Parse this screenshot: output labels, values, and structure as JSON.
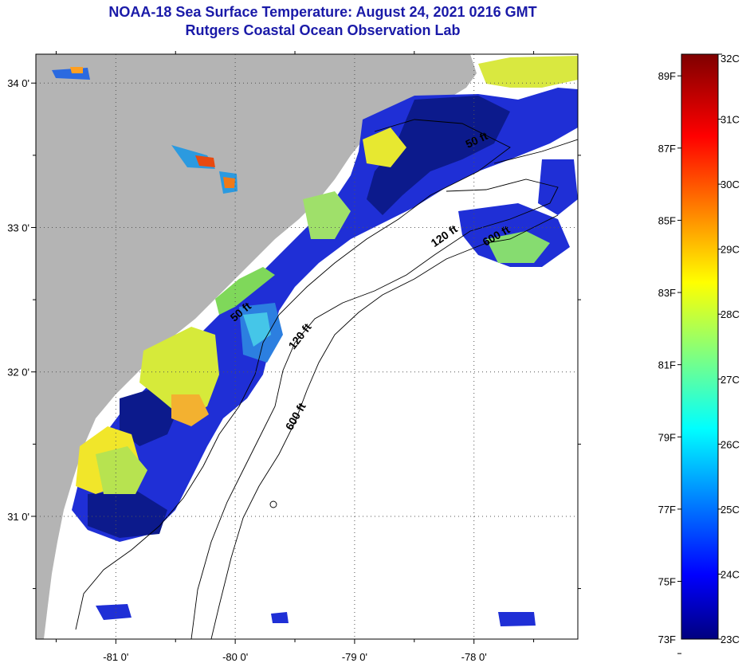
{
  "title": {
    "line1": "NOAA-18 Sea Surface Temperature:  August 24, 2021 0216 GMT",
    "line2": "Rutgers Coastal Ocean Observation Lab"
  },
  "map": {
    "lat_ticks": [
      {
        "value": 34,
        "label": "34 0'"
      },
      {
        "value": 33,
        "label": "33 0'"
      },
      {
        "value": 32,
        "label": "32 0'"
      },
      {
        "value": 31,
        "label": "31 0'"
      }
    ],
    "lon_ticks": [
      {
        "value": -81,
        "label": "-81 0'"
      },
      {
        "value": -80,
        "label": "-80 0'"
      },
      {
        "value": -79,
        "label": "-79 0'"
      },
      {
        "value": -78,
        "label": "-78 0'"
      }
    ],
    "lat_range": [
      30.15,
      34.2
    ],
    "lon_range": [
      -81.67,
      -77.13
    ],
    "contour_labels": [
      "50 ft",
      "120 ft",
      "600 ft",
      "50 ft",
      "120 ft",
      "600 ft"
    ],
    "land_color": "#b4b4b4",
    "grid": "dotted"
  },
  "colorbar": {
    "celsius_labels": [
      "32C",
      "31C",
      "30C",
      "29C",
      "28C",
      "27C",
      "26C",
      "25C",
      "24C",
      "23C"
    ],
    "fahrenheit_labels": [
      "89F",
      "87F",
      "85F",
      "83F",
      "81F",
      "79F",
      "77F",
      "75F",
      "73F"
    ],
    "celsius_range": [
      23,
      32
    ]
  }
}
